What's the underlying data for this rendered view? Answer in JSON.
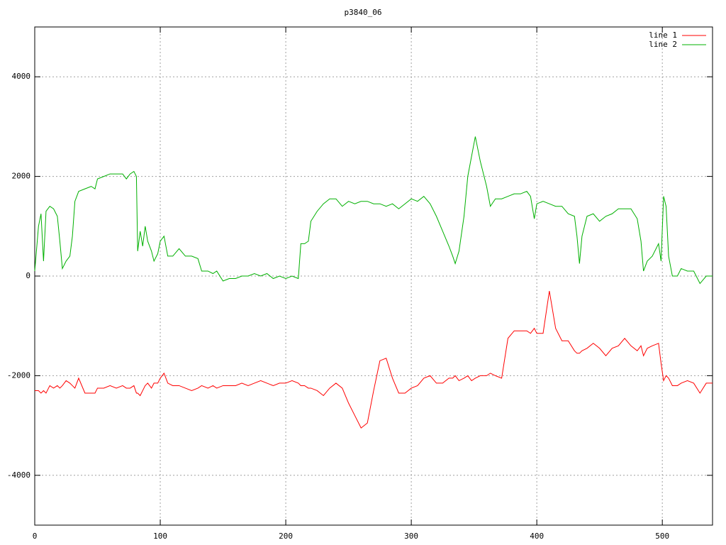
{
  "chart_data": {
    "type": "line",
    "title": "p3840_06",
    "x": [
      0,
      3,
      5,
      7,
      9,
      12,
      15,
      18,
      20,
      22,
      25,
      28,
      30,
      32,
      35,
      40,
      45,
      48,
      50,
      55,
      60,
      65,
      70,
      73,
      76,
      79,
      81,
      82,
      84,
      86,
      88,
      90,
      93,
      95,
      98,
      100,
      103,
      106,
      110,
      115,
      120,
      125,
      130,
      133,
      138,
      142,
      145,
      150,
      155,
      160,
      165,
      170,
      175,
      180,
      185,
      190,
      195,
      200,
      205,
      210,
      212,
      215,
      218,
      220,
      225,
      230,
      235,
      240,
      245,
      250,
      255,
      260,
      265,
      270,
      275,
      280,
      285,
      290,
      295,
      300,
      305,
      310,
      315,
      320,
      325,
      330,
      333,
      335,
      338,
      342,
      345,
      348,
      351,
      355,
      360,
      363,
      367,
      372,
      377,
      382,
      387,
      392,
      395,
      398,
      400,
      405,
      410,
      415,
      420,
      425,
      430,
      432,
      434,
      436,
      440,
      445,
      450,
      455,
      460,
      465,
      470,
      475,
      480,
      483,
      485,
      488,
      492,
      497,
      499,
      501,
      503,
      505,
      508,
      512,
      515,
      520,
      525,
      530,
      535,
      540
    ],
    "series": [
      {
        "name": "line 1",
        "color": "#ff0000",
        "values": [
          -2300,
          -2300,
          -2350,
          -2300,
          -2350,
          -2200,
          -2250,
          -2200,
          -2250,
          -2200,
          -2100,
          -2150,
          -2200,
          -2250,
          -2050,
          -2350,
          -2350,
          -2350,
          -2250,
          -2250,
          -2200,
          -2250,
          -2200,
          -2250,
          -2250,
          -2200,
          -2350,
          -2350,
          -2400,
          -2300,
          -2200,
          -2150,
          -2250,
          -2150,
          -2150,
          -2050,
          -1950,
          -2150,
          -2200,
          -2200,
          -2250,
          -2300,
          -2250,
          -2200,
          -2250,
          -2200,
          -2250,
          -2200,
          -2200,
          -2200,
          -2150,
          -2200,
          -2150,
          -2100,
          -2150,
          -2200,
          -2150,
          -2150,
          -2100,
          -2150,
          -2200,
          -2200,
          -2250,
          -2250,
          -2300,
          -2400,
          -2250,
          -2150,
          -2250,
          -2550,
          -2800,
          -3050,
          -2950,
          -2300,
          -1700,
          -1650,
          -2050,
          -2350,
          -2350,
          -2250,
          -2200,
          -2050,
          -2000,
          -2150,
          -2150,
          -2050,
          -2050,
          -2000,
          -2100,
          -2050,
          -2000,
          -2100,
          -2050,
          -2000,
          -2000,
          -1950,
          -2000,
          -2050,
          -1250,
          -1100,
          -1100,
          -1100,
          -1150,
          -1050,
          -1150,
          -1150,
          -300,
          -1050,
          -1300,
          -1300,
          -1500,
          -1550,
          -1550,
          -1500,
          -1450,
          -1350,
          -1450,
          -1600,
          -1450,
          -1400,
          -1250,
          -1400,
          -1500,
          -1400,
          -1600,
          -1450,
          -1400,
          -1350,
          -1750,
          -2100,
          -2000,
          -2050,
          -2200,
          -2200,
          -2150,
          -2100,
          -2150,
          -2350,
          -2150,
          -2150
        ]
      },
      {
        "name": "line 2",
        "color": "#00b000",
        "values": [
          100,
          1000,
          1250,
          300,
          1300,
          1400,
          1350,
          1200,
          700,
          150,
          300,
          400,
          800,
          1500,
          1700,
          1750,
          1800,
          1750,
          1950,
          2000,
          2050,
          2050,
          2050,
          1950,
          2050,
          2100,
          2000,
          500,
          900,
          600,
          1000,
          700,
          500,
          300,
          450,
          700,
          800,
          400,
          400,
          550,
          400,
          400,
          350,
          100,
          100,
          50,
          100,
          -100,
          -50,
          -50,
          0,
          0,
          50,
          0,
          50,
          -50,
          0,
          -50,
          0,
          -50,
          650,
          650,
          700,
          1100,
          1300,
          1450,
          1550,
          1550,
          1400,
          1500,
          1450,
          1500,
          1500,
          1450,
          1450,
          1400,
          1450,
          1350,
          1450,
          1550,
          1500,
          1600,
          1450,
          1200,
          900,
          600,
          400,
          250,
          500,
          1200,
          2000,
          2400,
          2800,
          2300,
          1800,
          1400,
          1550,
          1550,
          1600,
          1650,
          1650,
          1700,
          1600,
          1150,
          1450,
          1500,
          1450,
          1400,
          1400,
          1250,
          1200,
          800,
          250,
          800,
          1200,
          1250,
          1100,
          1200,
          1250,
          1350,
          1350,
          1350,
          1150,
          700,
          100,
          300,
          400,
          650,
          300,
          1600,
          1400,
          400,
          0,
          0,
          150,
          100,
          100,
          -150,
          0,
          0
        ]
      }
    ],
    "xlim": [
      0,
      540
    ],
    "xticks": [
      0,
      100,
      200,
      300,
      400,
      500
    ],
    "ylim": [
      -5000,
      5000
    ],
    "yticks": [
      -4000,
      -2000,
      0,
      2000,
      4000
    ],
    "grid": true,
    "legend": "top-right"
  }
}
